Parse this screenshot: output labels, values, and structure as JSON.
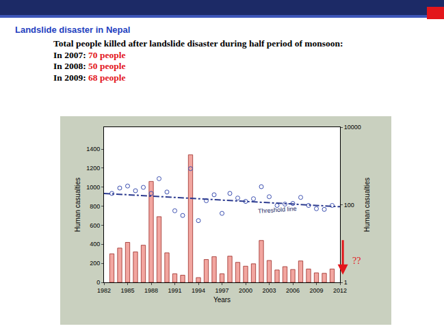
{
  "slide": {
    "title": "Landslide disaster in Nepal",
    "heading": "Total people killed after landslide disaster during half period of monsoon:",
    "lines": [
      {
        "label": "In 2007:",
        "value": "70 people"
      },
      {
        "label": "In 2008:",
        "value": "50 people"
      },
      {
        "label": "In 2009:",
        "value": "68 people"
      }
    ]
  },
  "chart_data": {
    "type": "bar",
    "x_label": "Years",
    "y_label": "Human casualties",
    "y2_label": "Human casualties",
    "x": [
      1983,
      1984,
      1985,
      1986,
      1987,
      1988,
      1989,
      1990,
      1991,
      1992,
      1993,
      1994,
      1995,
      1996,
      1997,
      1998,
      1999,
      2000,
      2001,
      2002,
      2003,
      2004,
      2005,
      2006,
      2007,
      2008,
      2009,
      2010,
      2011
    ],
    "series": [
      {
        "type": "bar",
        "color": "#f2a6a0",
        "values": [
          300,
          360,
          420,
          320,
          390,
          1060,
          690,
          310,
          90,
          75,
          1340,
          50,
          240,
          270,
          90,
          275,
          210,
          170,
          195,
          440,
          230,
          130,
          165,
          135,
          225,
          140,
          100,
          95,
          140
        ]
      },
      {
        "type": "scatter",
        "axis": "y2",
        "marker": "circle-open",
        "color": "#3b4fb0",
        "values": [
          196,
          270,
          304,
          230,
          281,
          196,
          470,
          213,
          70,
          53,
          853,
          39,
          127,
          181,
          60,
          196,
          149,
          122,
          143,
          292,
          161,
          96,
          104,
          108,
          155,
          96,
          79,
          76,
          96
        ]
      },
      {
        "type": "line",
        "axis": "y2",
        "line_style": "dashdot",
        "color": "#2b3a8f",
        "x": [
          1982,
          2012
        ],
        "values": [
          196,
          89
        ]
      }
    ],
    "xlim": [
      1982,
      2012
    ],
    "xticks": [
      1982,
      1985,
      1988,
      1991,
      1994,
      1997,
      2000,
      2003,
      2006,
      2009,
      2012
    ],
    "ylim": [
      0,
      1630
    ],
    "yticks": [
      0,
      200,
      400,
      600,
      800,
      1000,
      1200,
      1400
    ],
    "y2lim": [
      1,
      10000
    ],
    "y2ticks": [
      1,
      100,
      10000
    ],
    "log": "y2",
    "grid": false,
    "annotations": [
      {
        "text": "Threshold line",
        "x": 2004,
        "y": 75,
        "axis": "y2"
      },
      {
        "text": "??"
      }
    ]
  }
}
